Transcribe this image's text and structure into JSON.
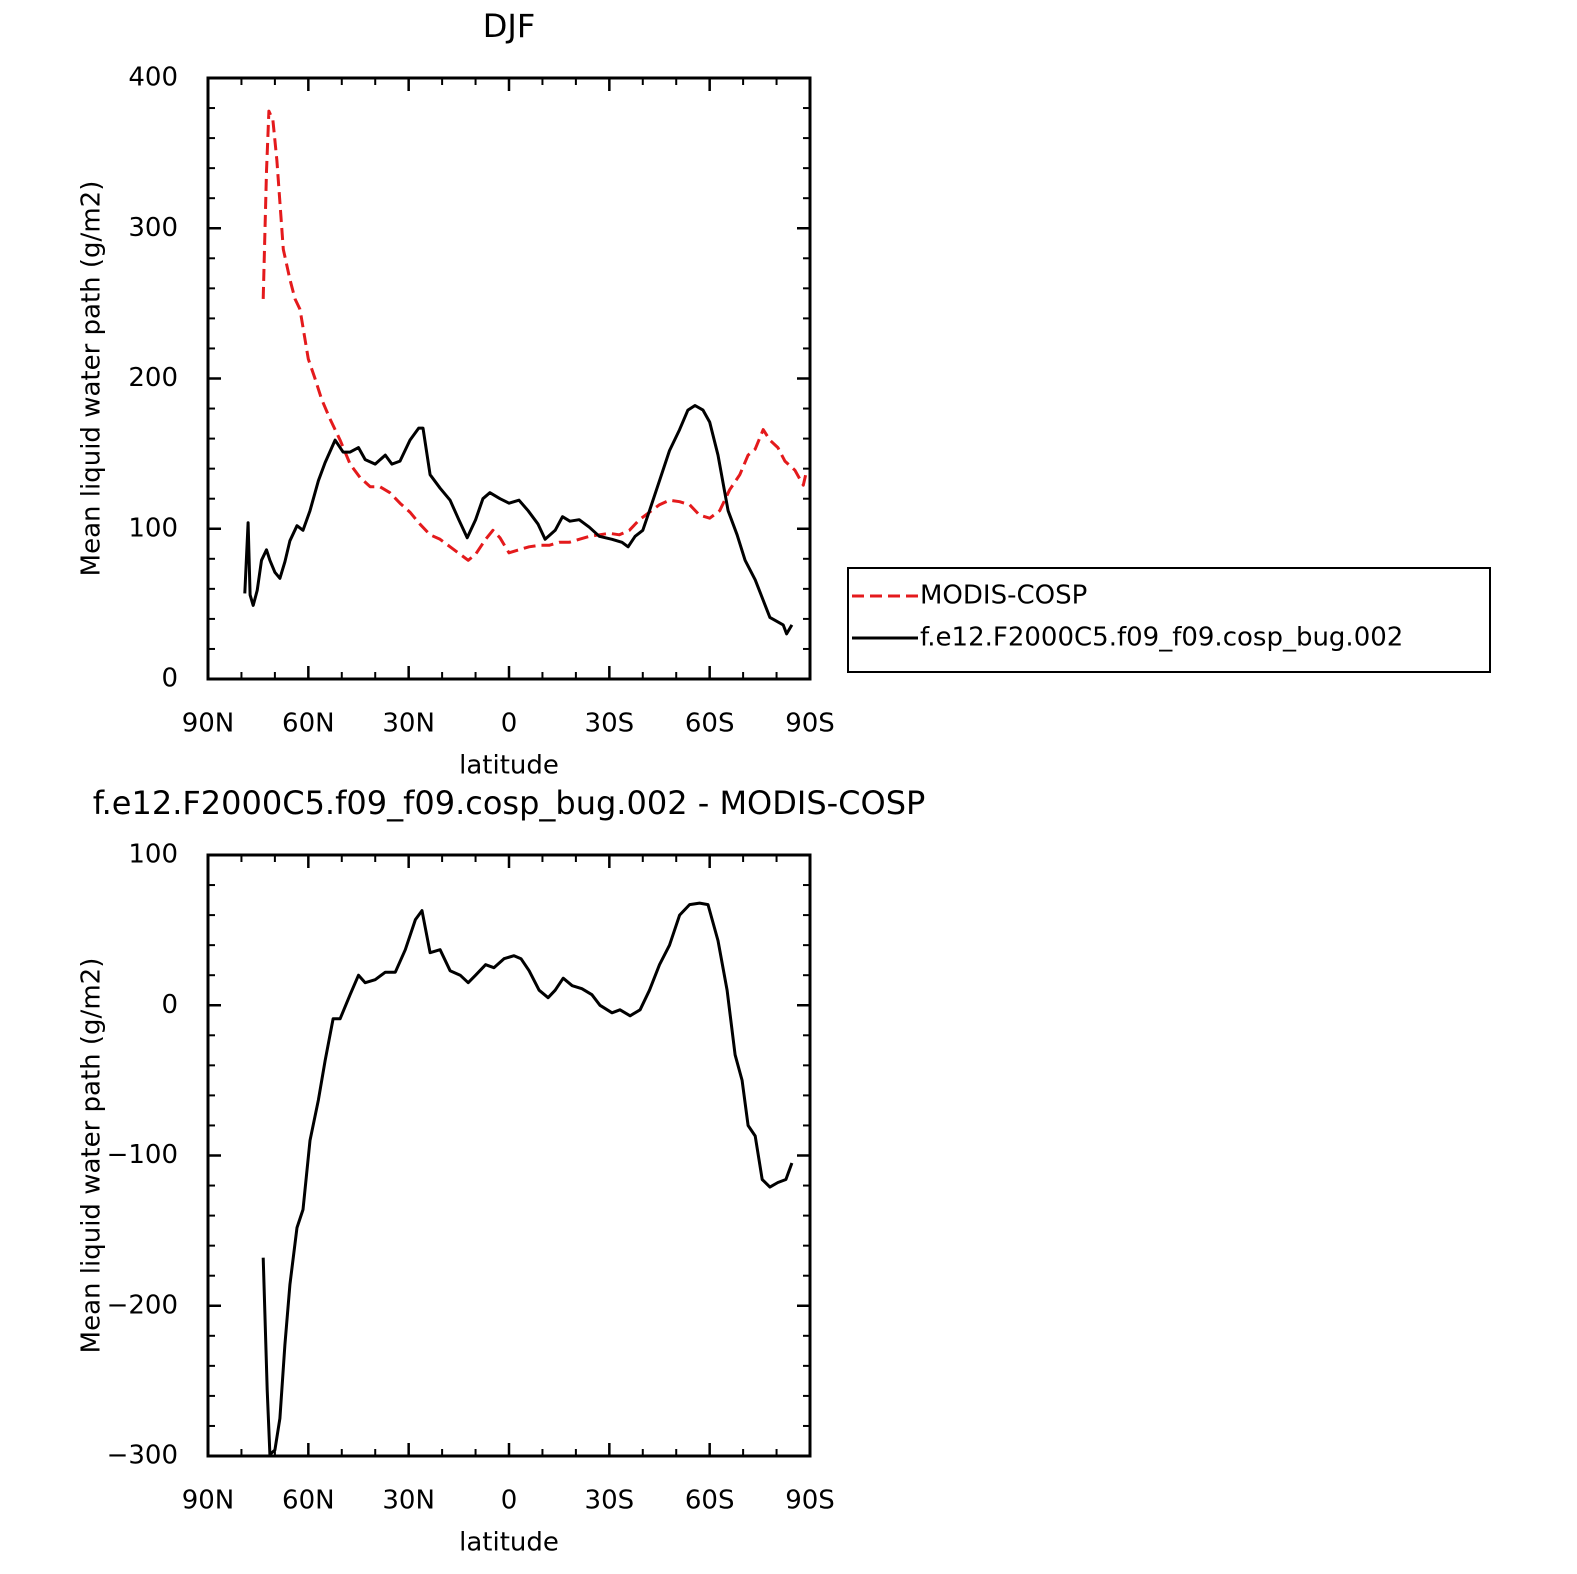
{
  "chart_data": [
    {
      "type": "line",
      "title": "DJF",
      "xlabel": "latitude",
      "ylabel": "Mean liquid water path (g/m2)",
      "xlim": [
        90,
        -90
      ],
      "ylim": [
        0,
        400
      ],
      "xticks": [
        {
          "value": 90,
          "label": "90N"
        },
        {
          "value": 60,
          "label": "60N"
        },
        {
          "value": 30,
          "label": "30N"
        },
        0,
        {
          "value": -30,
          "label": "30S"
        },
        {
          "value": -60,
          "label": "60S"
        },
        {
          "value": -90,
          "label": "90S"
        }
      ],
      "yticks": [
        0,
        100,
        200,
        300,
        400
      ],
      "legend": "right",
      "series": [
        {
          "name": "MODIS-COSP",
          "color": "#e41a1c",
          "dash": true,
          "x": [
            73.5,
            72.5,
            71.8,
            70.6,
            69.4,
            67.5,
            65.5,
            64,
            62.5,
            60,
            58,
            56,
            53.5,
            50.5,
            47.5,
            44.5,
            41.5,
            38.6,
            35.6,
            32.6,
            29.6,
            26.6,
            23.6,
            20.6,
            17.6,
            14.6,
            12.2,
            10,
            7,
            4.8,
            2.7,
            0,
            -3,
            -6,
            -9,
            -12,
            -15,
            -18,
            -21,
            -24,
            -27,
            -30,
            -33,
            -36,
            -39,
            -42,
            -45,
            -48,
            -51,
            -54,
            -57,
            -60,
            -63,
            -66,
            -69,
            -71.5,
            -73.6,
            -76,
            -78,
            -80.4,
            -82.5,
            -85.5,
            -88,
            -89
          ],
          "values": [
            253,
            338,
            378,
            372,
            345,
            286,
            266,
            253,
            246,
            213,
            200,
            186,
            173,
            159,
            143,
            134,
            128,
            128,
            124,
            117,
            111,
            103,
            96,
            93,
            88,
            83,
            79,
            83,
            93,
            99,
            94,
            84,
            86,
            88,
            89,
            89,
            91,
            91,
            93,
            95,
            96,
            97,
            96,
            99,
            106,
            111,
            116,
            119,
            118,
            116,
            109,
            107,
            112,
            126,
            136,
            149,
            153,
            166,
            159,
            154,
            145,
            139,
            129,
            139
          ]
        },
        {
          "name": "f.e12.F2000C5.f09_f09.cosp_bug.002",
          "color": "#000000",
          "dash": false,
          "x": [
            79,
            78,
            77.4,
            76.5,
            75.3,
            74,
            72.5,
            71.5,
            70,
            68.5,
            67,
            65.5,
            63.4,
            61.6,
            59.5,
            57,
            55,
            52,
            49.6,
            47.5,
            45,
            43,
            40,
            37,
            35,
            32.6,
            29.6,
            27,
            25.7,
            23.6,
            20.6,
            17.6,
            15,
            12.5,
            10,
            7.8,
            5.7,
            2.7,
            0,
            -3,
            -5.7,
            -8.7,
            -10.8,
            -13.8,
            -16,
            -18.2,
            -21,
            -24,
            -27,
            -30.8,
            -33.8,
            -35.6,
            -37.7,
            -40,
            -42,
            -45,
            -48,
            -51,
            -53.5,
            -55.6,
            -58,
            -60,
            -62.5,
            -65.5,
            -68.2,
            -70.6,
            -73.6,
            -76.6,
            -78,
            -80.4,
            -82,
            -83,
            -84.6
          ],
          "values": [
            57,
            104,
            56,
            49,
            59,
            79,
            86,
            79,
            71,
            67,
            78,
            92,
            102,
            99,
            112,
            132,
            144,
            159,
            151,
            151,
            154,
            146,
            143,
            149,
            143,
            145,
            159,
            167,
            167,
            136,
            127,
            119,
            106,
            94,
            106,
            120,
            124,
            120,
            117,
            119,
            112,
            103,
            93,
            99,
            108,
            105,
            106,
            101,
            95,
            93,
            91,
            88,
            95,
            99,
            112,
            132,
            152,
            166,
            179,
            182,
            179,
            171,
            149,
            112,
            96,
            79,
            66,
            49,
            41,
            38,
            36,
            30,
            36
          ]
        }
      ]
    },
    {
      "type": "line",
      "title": "f.e12.F2000C5.f09_f09.cosp_bug.002 - MODIS-COSP",
      "xlabel": "latitude",
      "ylabel": "Mean liquid water path (g/m2)",
      "xlim": [
        90,
        -90
      ],
      "ylim": [
        -300,
        100
      ],
      "xticks": [
        {
          "value": 90,
          "label": "90N"
        },
        {
          "value": 60,
          "label": "60N"
        },
        {
          "value": 30,
          "label": "30N"
        },
        0,
        {
          "value": -30,
          "label": "30S"
        },
        {
          "value": -60,
          "label": "60S"
        },
        {
          "value": -90,
          "label": "90S"
        }
      ],
      "yticks": [
        {
          "value": -300,
          "label": "−300"
        },
        {
          "value": -200,
          "label": "−200"
        },
        {
          "value": -100,
          "label": "−100"
        },
        0,
        100
      ],
      "series": [
        {
          "color": "#000000",
          "dash": false,
          "x": [
            73.5,
            72.3,
            71.5,
            70,
            68.5,
            67,
            65.5,
            63.4,
            61.6,
            59.5,
            57,
            55,
            52.6,
            50.5,
            47.5,
            45,
            43,
            40,
            37,
            34,
            31,
            28,
            26,
            23.6,
            20.6,
            17.6,
            14.6,
            12.2,
            10,
            7,
            4.5,
            1.5,
            -1.5,
            -3.6,
            -6,
            -9,
            -11.7,
            -13.8,
            -16.2,
            -18.9,
            -21.8,
            -24.8,
            -27.2,
            -30.8,
            -33.2,
            -36.2,
            -39.2,
            -42,
            -45,
            -48,
            -51,
            -54,
            -57,
            -59.5,
            -62.5,
            -65.2,
            -67.6,
            -69.7,
            -71.5,
            -73.6,
            -75.7,
            -78,
            -80.4,
            -82.8,
            -84.6
          ],
          "values": [
            -168,
            -256,
            -299,
            -296,
            -275,
            -226,
            -186,
            -148,
            -136,
            -90,
            -63,
            -37,
            -9,
            -9,
            7,
            20,
            15,
            17,
            22,
            22,
            37,
            57,
            63,
            35,
            37,
            23,
            20,
            15,
            20,
            27,
            25,
            31,
            33,
            31,
            23,
            10,
            5,
            10,
            18,
            13,
            11,
            7,
            0,
            -5,
            -3,
            -7,
            -3,
            10,
            27,
            40,
            60,
            67,
            68,
            67,
            43,
            10,
            -33,
            -50,
            -80,
            -87,
            -116,
            -121,
            -118,
            -116,
            -105
          ]
        }
      ]
    }
  ]
}
